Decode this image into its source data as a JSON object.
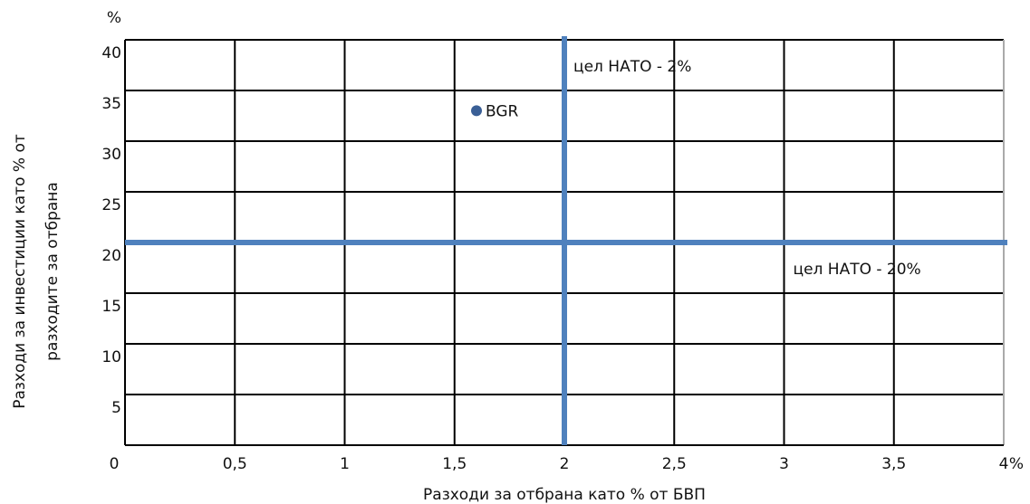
{
  "chart_data": {
    "type": "scatter",
    "xlabel": "Разходи за отбрана като % от БВП",
    "ylabel": [
      "Разходи за инвестиции като  % от",
      "разходите за отбрана"
    ],
    "xunit": "%",
    "yunit": "%",
    "xlim": [
      0,
      4
    ],
    "ylim": [
      0,
      40
    ],
    "xticks": [
      0,
      {
        "value": 0.5,
        "label": "0,5"
      },
      1,
      {
        "value": 1.5,
        "label": "1,5"
      },
      2,
      {
        "value": 2.5,
        "label": "2,5"
      },
      3,
      {
        "value": 3.5,
        "label": "3,5"
      },
      4
    ],
    "yticks": [
      5,
      10,
      15,
      20,
      25,
      30,
      35,
      40
    ],
    "grid": true,
    "series": [
      {
        "name": "BGR",
        "color": "#3a5f96",
        "x": [
          1.6
        ],
        "values": [
          33
        ]
      }
    ],
    "reference_lines": [
      {
        "axis": "x",
        "value": 2,
        "label": "цел НАТО - 2%",
        "color": "#4f81bd"
      },
      {
        "axis": "y",
        "value": 20,
        "label": "цел НАТО - 20%",
        "color": "#4f81bd"
      }
    ]
  }
}
